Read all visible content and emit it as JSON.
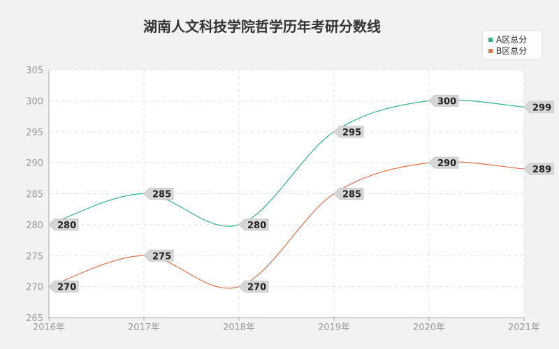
{
  "chart_data": {
    "type": "line",
    "title": "湖南人文科技学院哲学历年考研分数线",
    "categories": [
      "2016年",
      "2017年",
      "2018年",
      "2019年",
      "2020年",
      "2021年"
    ],
    "ylim": [
      265,
      305
    ],
    "yticks": [
      265,
      270,
      275,
      280,
      285,
      290,
      295,
      300,
      305
    ],
    "grid": true,
    "legend_position": "top-right",
    "series": [
      {
        "name": "A区总分",
        "color": "#2db58a",
        "values": [
          280,
          285,
          280,
          295,
          300,
          299
        ]
      },
      {
        "name": "B区总分",
        "color": "#e0734a",
        "values": [
          270,
          275,
          270,
          285,
          290,
          289
        ]
      }
    ]
  }
}
